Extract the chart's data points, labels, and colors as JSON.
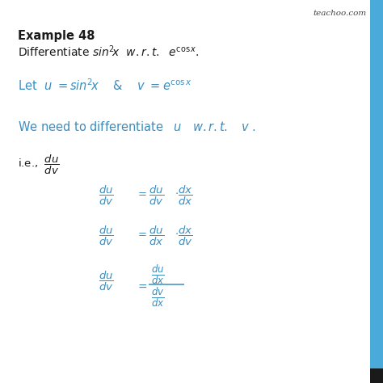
{
  "background_color": "#ffffff",
  "blue_color": "#3B8DC0",
  "black_color": "#1a1a1a",
  "watermark": "teachoo.com",
  "sidebar_color": "#4AABDB",
  "figsize": [
    4.74,
    4.74
  ],
  "dpi": 100
}
